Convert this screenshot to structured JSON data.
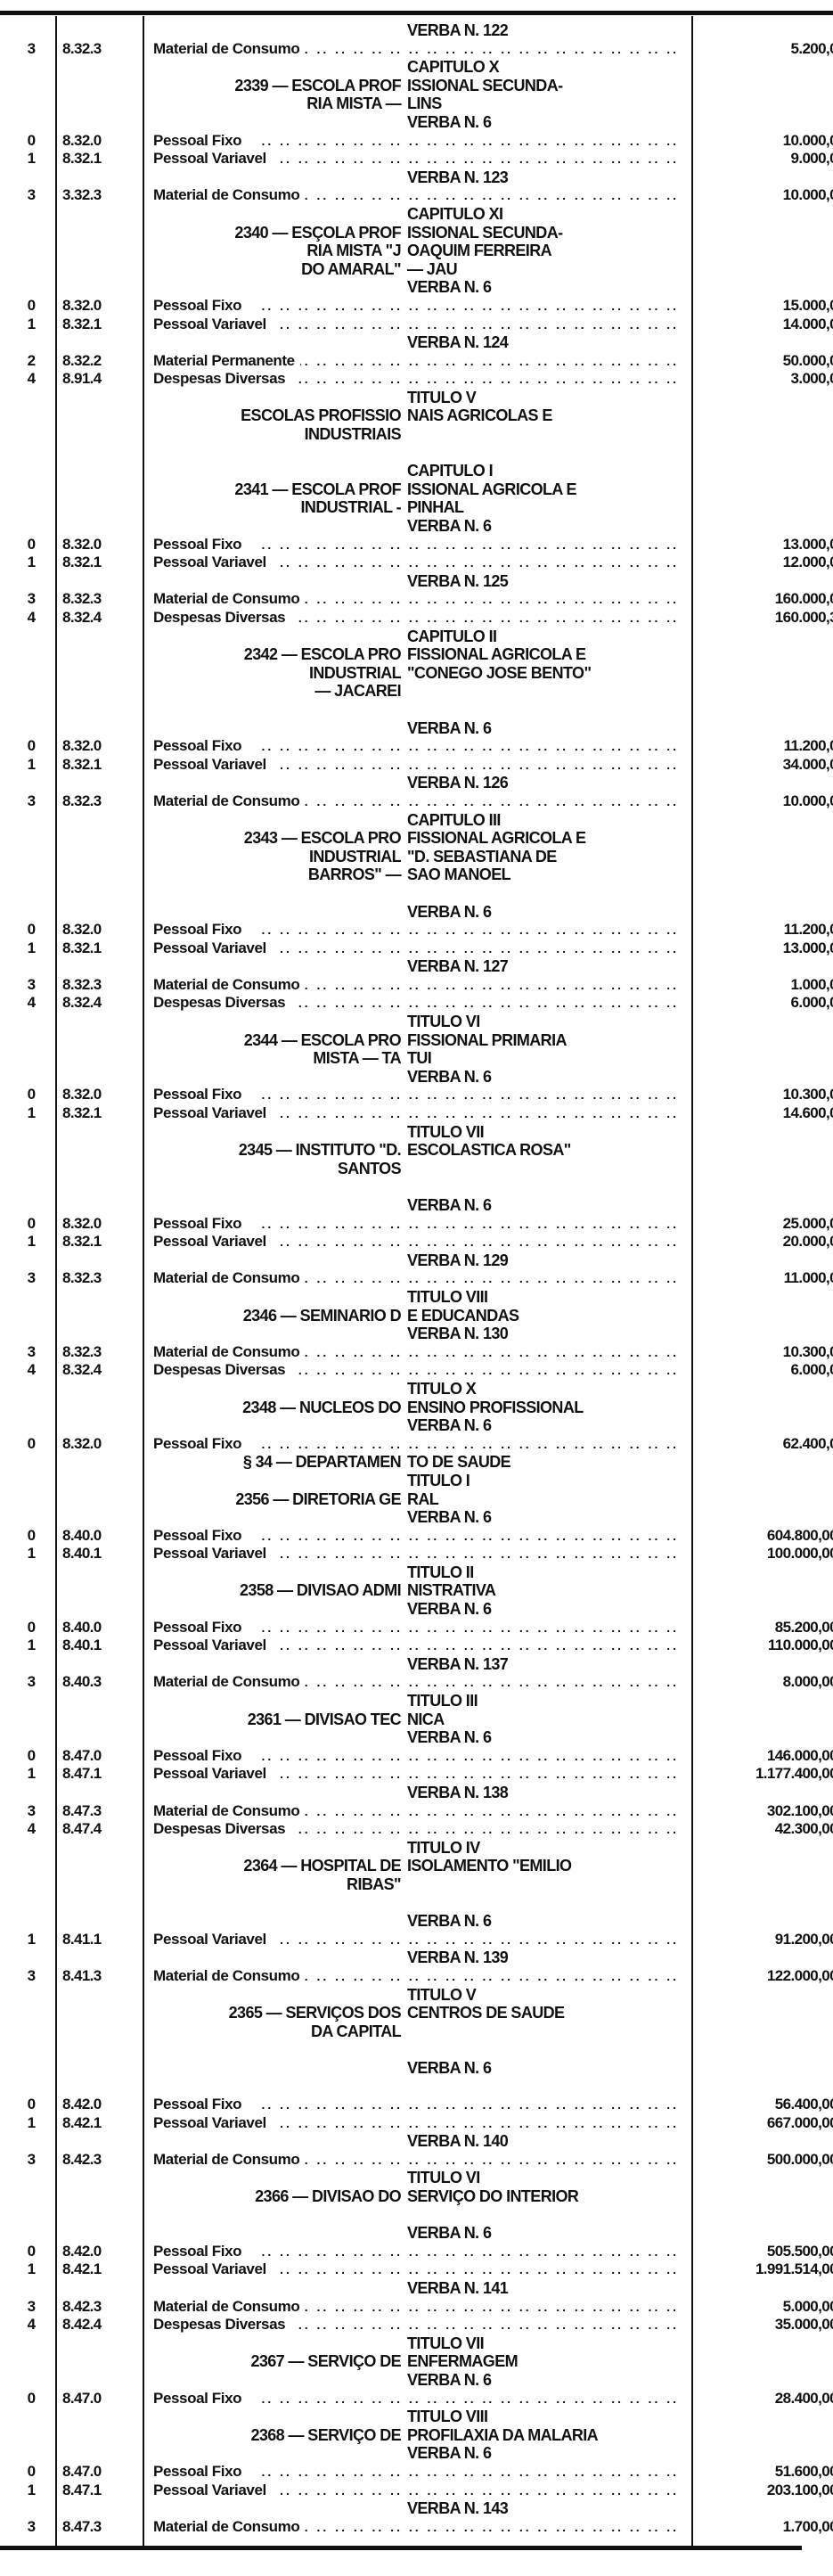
{
  "document": {
    "rows": [
      {
        "t": "h",
        "l": "",
        "r": "VERBA N. 122"
      },
      {
        "t": "i",
        "d": "3",
        "c": "8.32.3",
        "label": "Material de Consumo",
        "v": "5.200,0"
      },
      {
        "t": "h",
        "l": "",
        "r": "CAPITULO X"
      },
      {
        "t": "h",
        "l": "2339 — ESCOLA PROF",
        "r": "ISSIONAL SECUNDA-"
      },
      {
        "t": "h",
        "l": "RIA MISTA —",
        "r": "LINS"
      },
      {
        "t": "h",
        "l": "",
        "r": "VERBA N. 6"
      },
      {
        "t": "i",
        "d": "0",
        "c": "8.32.0",
        "label": "Pessoal Fixo",
        "v": "10.000,0"
      },
      {
        "t": "i",
        "d": "1",
        "c": "8.32.1",
        "label": "Pessoal Variavel",
        "v": "9.000,0"
      },
      {
        "t": "h",
        "l": "",
        "r": "VERBA N. 123"
      },
      {
        "t": "i",
        "d": "3",
        "c": "3.32.3",
        "label": "Material de Consumo",
        "v": "10.000,0"
      },
      {
        "t": "h",
        "l": "",
        "r": "CAPITULO XI"
      },
      {
        "t": "h",
        "l": "2340 — ESÇOLA PROF",
        "r": "ISSIONAL SECUNDA-"
      },
      {
        "t": "h",
        "l": "RIA MISTA \"J",
        "r": "OAQUIM FERREIRA"
      },
      {
        "t": "h",
        "l": "DO AMARAL\"",
        "r": "— JAU"
      },
      {
        "t": "h",
        "l": "",
        "r": "VERBA N. 6"
      },
      {
        "t": "i",
        "d": "0",
        "c": "8.32.0",
        "label": "Pessoal Fixo",
        "v": "15.000,0"
      },
      {
        "t": "i",
        "d": "1",
        "c": "8.32.1",
        "label": "Pessoal Variavel",
        "v": "14.000,0"
      },
      {
        "t": "h",
        "l": "",
        "r": "VERBA N. 124"
      },
      {
        "t": "i",
        "d": "2",
        "c": "8.32.2",
        "label": "Material Permanente",
        "v": "50.000,0"
      },
      {
        "t": "i",
        "d": "4",
        "c": "8.91.4",
        "label": "Despesas Diversas",
        "v": "3.000,0"
      },
      {
        "t": "h",
        "l": "",
        "r": "TITULO V"
      },
      {
        "t": "h",
        "l": "ESCOLAS PROFISSIO",
        "r": "NAIS AGRICOLAS E"
      },
      {
        "t": "h",
        "l": "INDUSTRIAIS",
        "r": ""
      },
      {
        "t": "s"
      },
      {
        "t": "h",
        "l": "",
        "r": "CAPITULO I"
      },
      {
        "t": "h",
        "l": "2341 — ESCOLA PROF",
        "r": "ISSIONAL AGRICOLA E"
      },
      {
        "t": "h",
        "l": "INDUSTRIAL -",
        "r": "PINHAL"
      },
      {
        "t": "h",
        "l": "",
        "r": "VERBA N. 6"
      },
      {
        "t": "i",
        "d": "0",
        "c": "8.32.0",
        "label": "Pessoal Fixo",
        "v": "13.000,0"
      },
      {
        "t": "i",
        "d": "1",
        "c": "8.32.1",
        "label": "Pessoal Variavel",
        "v": "12.000,0"
      },
      {
        "t": "h",
        "l": "",
        "r": "VERBA N. 125"
      },
      {
        "t": "i",
        "d": "3",
        "c": "8.32.3",
        "label": "Material de Consumo",
        "v": "160.000,0"
      },
      {
        "t": "i",
        "d": "4",
        "c": "8.32.4",
        "label": "Despesas Diversas",
        "v": "160.000,3"
      },
      {
        "t": "h",
        "l": "",
        "r": "CAPITULO II"
      },
      {
        "t": "h",
        "l": "2342 — ESCOLA PRO",
        "r": "FISSIONAL AGRICOLA E"
      },
      {
        "t": "h",
        "l": "INDUSTRIAL",
        "r": "\"CONEGO JOSE BENTO\""
      },
      {
        "t": "h",
        "l": "— JACAREI",
        "r": ""
      },
      {
        "t": "s"
      },
      {
        "t": "h",
        "l": "",
        "r": "VERBA N. 6"
      },
      {
        "t": "i",
        "d": "0",
        "c": "8.32.0",
        "label": "Pessoal Fixo",
        "v": "11.200,0"
      },
      {
        "t": "i",
        "d": "1",
        "c": "8.32.1",
        "label": "Pessoal Variavel",
        "v": "34.000,0"
      },
      {
        "t": "h",
        "l": "",
        "r": "VERBA N. 126"
      },
      {
        "t": "i",
        "d": "3",
        "c": "8.32.3",
        "label": "Material de Consumo",
        "v": "10.000,0"
      },
      {
        "t": "h",
        "l": "",
        "r": "CAPITULO III"
      },
      {
        "t": "h",
        "l": "2343 — ESCOLA PRO",
        "r": "FISSIONAL AGRICOLA E"
      },
      {
        "t": "h",
        "l": "INDUSTRIAL",
        "r": "\"D. SEBASTIANA DE"
      },
      {
        "t": "h",
        "l": "BARROS\" —",
        "r": "SAO MANOEL"
      },
      {
        "t": "s"
      },
      {
        "t": "h",
        "l": "",
        "r": "VERBA N. 6"
      },
      {
        "t": "i",
        "d": "0",
        "c": "8.32.0",
        "label": "Pessoal Fixo",
        "v": "11.200,0"
      },
      {
        "t": "i",
        "d": "1",
        "c": "8.32.1",
        "label": "Pessoal Variavel",
        "v": "13.000,0"
      },
      {
        "t": "h",
        "l": "",
        "r": "VERBA N. 127"
      },
      {
        "t": "i",
        "d": "3",
        "c": "8.32.3",
        "label": "Material de Consumo",
        "v": "1.000,0"
      },
      {
        "t": "i",
        "d": "4",
        "c": "8.32.4",
        "label": "Despesas Diversas",
        "v": "6.000,0"
      },
      {
        "t": "h",
        "l": "",
        "r": "TITULO VI"
      },
      {
        "t": "h",
        "l": "2344 — ESCOLA PRO",
        "r": "FISSIONAL PRIMARIA"
      },
      {
        "t": "h",
        "l": "MISTA — TA",
        "r": "TUI"
      },
      {
        "t": "h",
        "l": "",
        "r": "VERBA N. 6"
      },
      {
        "t": "i",
        "d": "0",
        "c": "8.32.0",
        "label": "Pessoal Fixo",
        "v": "10.300,0"
      },
      {
        "t": "i",
        "d": "1",
        "c": "8.32.1",
        "label": "Pessoal Variavel",
        "v": "14.600,0"
      },
      {
        "t": "h",
        "l": "",
        "r": "TITULO VII"
      },
      {
        "t": "h",
        "l": "2345 — INSTITUTO \"D.",
        "r": "ESCOLASTICA ROSA\""
      },
      {
        "t": "h",
        "l": "SANTOS",
        "r": ""
      },
      {
        "t": "s"
      },
      {
        "t": "h",
        "l": "",
        "r": "VERBA N. 6"
      },
      {
        "t": "i",
        "d": "0",
        "c": "8.32.0",
        "label": "Pessoal Fixo",
        "v": "25.000,0"
      },
      {
        "t": "i",
        "d": "1",
        "c": "8.32.1",
        "label": "Pessoal Variavel",
        "v": "20.000,0"
      },
      {
        "t": "h",
        "l": "",
        "r": "VERBA N. 129"
      },
      {
        "t": "i",
        "d": "3",
        "c": "8.32.3",
        "label": "Material de Consumo",
        "v": "11.000,0"
      },
      {
        "t": "h",
        "l": "",
        "r": "TITULO VIII"
      },
      {
        "t": "h",
        "l": "2346 — SEMINARIO D",
        "r": "E EDUCANDAS"
      },
      {
        "t": "h",
        "l": "",
        "r": "VERBA N. 130"
      },
      {
        "t": "i",
        "d": "3",
        "c": "8.32.3",
        "label": "Material de Consumo",
        "v": "10.300,0"
      },
      {
        "t": "i",
        "d": "4",
        "c": "8.32.4",
        "label": "Despesas Diversas",
        "v": "6.000,0"
      },
      {
        "t": "h",
        "l": "",
        "r": "TITULO X"
      },
      {
        "t": "h",
        "l": "2348 — NUCLEOS DO",
        "r": "ENSINO PROFISSIONAL"
      },
      {
        "t": "h",
        "l": "",
        "r": "VERBA N. 6"
      },
      {
        "t": "i",
        "d": "0",
        "c": "8.32.0",
        "label": "Pessoal Fixo",
        "v": "62.400,0"
      },
      {
        "t": "h",
        "l": "§ 34 — DEPARTAMEN",
        "r": "TO DE SAUDE"
      },
      {
        "t": "h",
        "l": "",
        "r": "TITULO I"
      },
      {
        "t": "h",
        "l": "2356 — DIRETORIA GE",
        "r": "RAL"
      },
      {
        "t": "h",
        "l": "",
        "r": "VERBA N. 6"
      },
      {
        "t": "i",
        "d": "0",
        "c": "8.40.0",
        "label": "Pessoal Fixo",
        "v": "604.800,00"
      },
      {
        "t": "i",
        "d": "1",
        "c": "8.40.1",
        "label": "Pessoal Variavel",
        "v": "100.000,00"
      },
      {
        "t": "h",
        "l": "",
        "r": "TITULO II"
      },
      {
        "t": "h",
        "l": "2358 — DIVISAO ADMI",
        "r": "NISTRATIVA"
      },
      {
        "t": "h",
        "l": "",
        "r": "VERBA N. 6"
      },
      {
        "t": "i",
        "d": "0",
        "c": "8.40.0",
        "label": "Pessoal Fixo",
        "v": "85.200,00"
      },
      {
        "t": "i",
        "d": "1",
        "c": "8.40.1",
        "label": "Pessoal Variavel",
        "v": "110.000,00"
      },
      {
        "t": "h",
        "l": "",
        "r": "VERBA N. 137"
      },
      {
        "t": "i",
        "d": "3",
        "c": "8.40.3",
        "label": "Material de Consumo",
        "v": "8.000,00"
      },
      {
        "t": "h",
        "l": "",
        "r": "TITULO III"
      },
      {
        "t": "h",
        "l": "2361 — DIVISAO TEC",
        "r": "NICA"
      },
      {
        "t": "h",
        "l": "",
        "r": "VERBA N. 6"
      },
      {
        "t": "i",
        "d": "0",
        "c": "8.47.0",
        "label": "Pessoal Fixo",
        "v": "146.000,00"
      },
      {
        "t": "i",
        "d": "1",
        "c": "8.47.1",
        "label": "Pessoal Variavel",
        "v": "1.177.400,00"
      },
      {
        "t": "h",
        "l": "",
        "r": "VERBA N. 138"
      },
      {
        "t": "i",
        "d": "3",
        "c": "8.47.3",
        "label": "Material de Consumo",
        "v": "302.100,00"
      },
      {
        "t": "i",
        "d": "4",
        "c": "8.47.4",
        "label": "Despesas Diversas",
        "v": "42.300,00"
      },
      {
        "t": "h",
        "l": "",
        "r": "TITULO IV"
      },
      {
        "t": "h",
        "l": "2364 — HOSPITAL DE",
        "r": "ISOLAMENTO \"EMILIO"
      },
      {
        "t": "h",
        "l": "RIBAS\"",
        "r": ""
      },
      {
        "t": "s"
      },
      {
        "t": "h",
        "l": "",
        "r": "VERBA N. 6"
      },
      {
        "t": "i",
        "d": "1",
        "c": "8.41.1",
        "label": "Pessoal Variavel",
        "v": "91.200,00"
      },
      {
        "t": "h",
        "l": "",
        "r": "VERBA N. 139"
      },
      {
        "t": "i",
        "d": "3",
        "c": "8.41.3",
        "label": "Material de Consumo",
        "v": "122.000,00"
      },
      {
        "t": "h",
        "l": "",
        "r": "TITULO V"
      },
      {
        "t": "h",
        "l": "2365 — SERVIÇOS DOS",
        "r": "CENTROS DE SAUDE"
      },
      {
        "t": "h",
        "l": "DA CAPITAL",
        "r": ""
      },
      {
        "t": "s"
      },
      {
        "t": "h",
        "l": "",
        "r": "VERBA N. 6"
      },
      {
        "t": "s"
      },
      {
        "t": "i",
        "d": "0",
        "c": "8.42.0",
        "label": "Pessoal Fixo",
        "v": "56.400,00"
      },
      {
        "t": "i",
        "d": "1",
        "c": "8.42.1",
        "label": "Pessoal Variavel",
        "v": "667.000,00"
      },
      {
        "t": "h",
        "l": "",
        "r": "VERBA N. 140"
      },
      {
        "t": "i",
        "d": "3",
        "c": "8.42.3",
        "label": "Material de Consumo",
        "v": "500.000,00"
      },
      {
        "t": "h",
        "l": "",
        "r": "TITULO VI"
      },
      {
        "t": "h",
        "l": "2366 — DIVISAO DO",
        "r": "SERVIÇO DO INTERIOR"
      },
      {
        "t": "s"
      },
      {
        "t": "h",
        "l": "",
        "r": "VERBA N. 6"
      },
      {
        "t": "i",
        "d": "0",
        "c": "8.42.0",
        "label": "Pessoal Fixo",
        "v": "505.500,00"
      },
      {
        "t": "i",
        "d": "1",
        "c": "8.42.1",
        "label": "Pessoal Variavel",
        "v": "1.991.514,00"
      },
      {
        "t": "h",
        "l": "",
        "r": "VERBA N. 141"
      },
      {
        "t": "i",
        "d": "3",
        "c": "8.42.3",
        "label": "Material de Consumo",
        "v": "5.000,00"
      },
      {
        "t": "i",
        "d": "4",
        "c": "8.42.4",
        "label": "Despesas Diversas",
        "v": "35.000,00"
      },
      {
        "t": "h",
        "l": "",
        "r": "TITULO VII"
      },
      {
        "t": "h",
        "l": "2367 — SERVIÇO DE",
        "r": "ENFERMAGEM"
      },
      {
        "t": "h",
        "l": "",
        "r": "VERBA N. 6"
      },
      {
        "t": "i",
        "d": "0",
        "c": "8.47.0",
        "label": "Pessoal Fixo",
        "v": "28.400,00"
      },
      {
        "t": "h",
        "l": "",
        "r": "TITULO VIII"
      },
      {
        "t": "h",
        "l": "2368 — SERVIÇO DE",
        "r": "PROFILAXIA DA MALARIA"
      },
      {
        "t": "h",
        "l": "",
        "r": "VERBA N. 6"
      },
      {
        "t": "i",
        "d": "0",
        "c": "8.47.0",
        "label": "Pessoal Fixo",
        "v": "51.600,00"
      },
      {
        "t": "i",
        "d": "1",
        "c": "8.47.1",
        "label": "Pessoal Variavel",
        "v": "203.100,00"
      },
      {
        "t": "h",
        "l": "",
        "r": "VERBA N. 143"
      },
      {
        "t": "i",
        "d": "3",
        "c": "8.47.3",
        "label": "Material de Consumo",
        "v": "1.700,00"
      }
    ]
  }
}
